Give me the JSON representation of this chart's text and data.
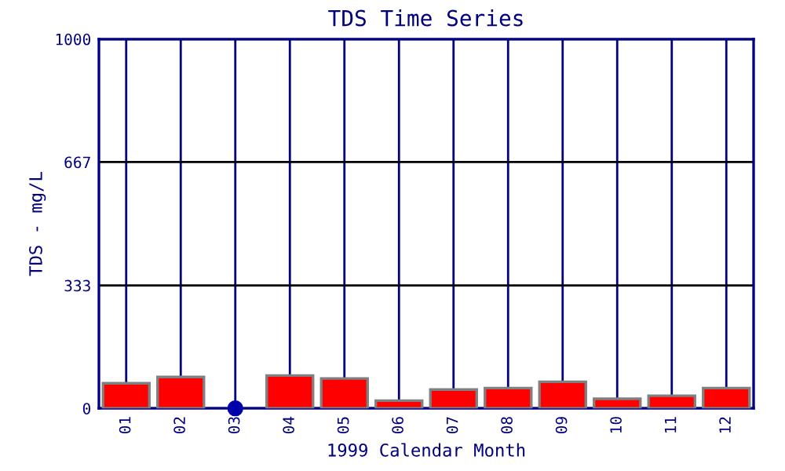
{
  "chart_data": {
    "type": "bar",
    "title": "TDS Time Series",
    "xlabel": "1999 Calendar Month",
    "ylabel": "TDS - mg/L",
    "categories": [
      "01",
      "02",
      "03",
      "04",
      "05",
      "06",
      "07",
      "08",
      "09",
      "10",
      "11",
      "12"
    ],
    "series": [
      {
        "color": "#ff0000",
        "values": [
          68,
          85,
          null,
          89,
          81,
          21,
          51,
          55,
          72,
          26,
          34,
          55
        ]
      },
      {
        "type": "scatter",
        "color": "#0000aa",
        "x": [
          "03"
        ],
        "values": [
          0
        ],
        "marker": "circle"
      }
    ],
    "ylim": [
      0,
      1000
    ],
    "yticks": [
      0,
      333,
      667,
      1000
    ],
    "grid": true
  }
}
